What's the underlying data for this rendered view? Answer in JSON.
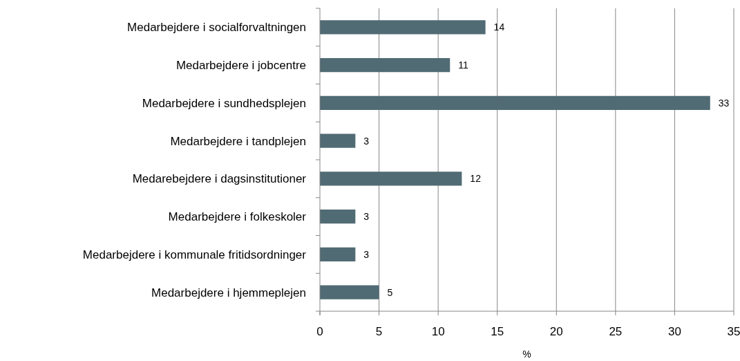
{
  "chart_data": {
    "type": "bar",
    "orientation": "horizontal",
    "xlabel": "%",
    "categories": [
      "Medarbejdere i socialforvaltningen",
      "Medarbejdere i jobcentre",
      "Medarbejdere i sundhedsplejen",
      "Medarbejdere i tandplejen",
      "Medarebejdere i dagsinstitutioner",
      "Medarbejdere i folkeskoler",
      "Medarbejdere i kommunale fritidsordninger",
      "Medarbejdere i hjemmeplejen"
    ],
    "values": [
      14,
      11,
      33,
      3,
      12,
      3,
      3,
      5
    ],
    "color": "#516b74",
    "xlim": [
      0,
      35
    ],
    "xticks": [
      0,
      5,
      10,
      15,
      20,
      25,
      30,
      35
    ],
    "grid": "x",
    "data_labels": true
  }
}
